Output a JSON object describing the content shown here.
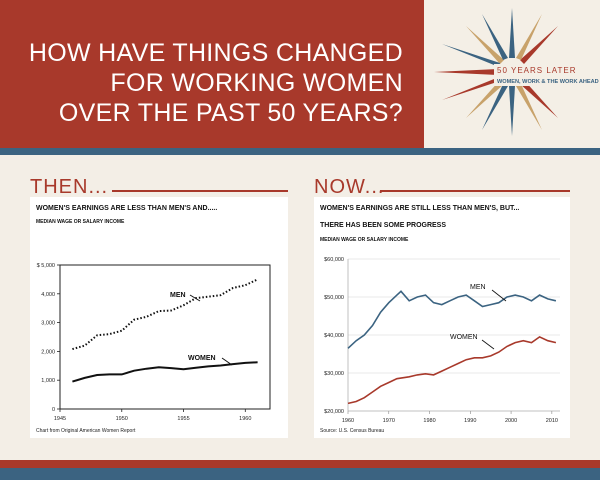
{
  "header": {
    "headline_lines": [
      "HOW HAVE THINGS CHANGED",
      "FOR WORKING WOMEN",
      "OVER THE PAST 50 YEARS?"
    ],
    "logo_line1": "50 YEARS LATER",
    "logo_line2": "WOMEN, WORK & THE WORK AHEAD"
  },
  "colors": {
    "brand_red": "#a8392b",
    "brand_blue": "#3b6381",
    "logo_gold": "#c8a26a",
    "background": "#f3eee6"
  },
  "then_label": "THEN...",
  "now_label": "NOW...",
  "chart_data": [
    {
      "type": "line",
      "title": "WOMEN'S EARNINGS ARE LESS THAN MEN'S AND.....",
      "subtitle": "MEDIAN WAGE OR SALARY INCOME",
      "source": "Chart from Original American Women Report",
      "xlim": [
        1945,
        1962
      ],
      "ylim": [
        0,
        5000
      ],
      "x_ticks": [
        1945,
        1950,
        1955,
        1960
      ],
      "x_tick_labels": [
        "1945",
        "1950",
        "1955",
        "1960"
      ],
      "y_ticks": [
        0,
        1000,
        2000,
        3000,
        4000,
        5000
      ],
      "y_tick_labels": [
        "0",
        "1,000",
        "2,000",
        "3,000",
        "4,000",
        "$ 5,000"
      ],
      "series": [
        {
          "name": "MEN",
          "style": "dotted",
          "x": [
            1946,
            1947,
            1948,
            1949,
            1950,
            1951,
            1952,
            1953,
            1954,
            1955,
            1956,
            1957,
            1958,
            1959,
            1960,
            1961
          ],
          "values": [
            2080,
            2200,
            2560,
            2600,
            2720,
            3100,
            3200,
            3400,
            3420,
            3600,
            3850,
            3900,
            3950,
            4200,
            4300,
            4500
          ]
        },
        {
          "name": "WOMEN",
          "style": "solid",
          "x": [
            1946,
            1947,
            1948,
            1949,
            1950,
            1951,
            1952,
            1953,
            1954,
            1955,
            1956,
            1957,
            1958,
            1959,
            1960,
            1961
          ],
          "values": [
            950,
            1080,
            1180,
            1200,
            1200,
            1330,
            1400,
            1450,
            1420,
            1380,
            1430,
            1480,
            1510,
            1560,
            1600,
            1620
          ]
        }
      ]
    },
    {
      "type": "line",
      "title": "WOMEN'S EARNINGS ARE STILL LESS THAN MEN'S, BUT...",
      "title_line2": "THERE HAS BEEN SOME PROGRESS",
      "subtitle": "MEDIAN WAGE OR SALARY INCOME",
      "source": "Source: U.S. Census Bureau",
      "xlim": [
        1960,
        2012
      ],
      "ylim": [
        20000,
        60000
      ],
      "x_ticks": [
        1960,
        1970,
        1980,
        1990,
        2000,
        2010
      ],
      "x_tick_labels": [
        "1960",
        "1970",
        "1980",
        "1990",
        "2000",
        "2010"
      ],
      "y_ticks": [
        20000,
        30000,
        40000,
        50000,
        60000
      ],
      "y_tick_labels": [
        "$20,000",
        "$30,000",
        "$40,000",
        "$50,000",
        "$60,000"
      ],
      "series": [
        {
          "name": "MEN",
          "color": "#3b6381",
          "x": [
            1960,
            1962,
            1964,
            1966,
            1968,
            1970,
            1972,
            1973,
            1975,
            1977,
            1979,
            1981,
            1983,
            1985,
            1987,
            1989,
            1991,
            1993,
            1995,
            1997,
            1999,
            2001,
            2003,
            2005,
            2007,
            2009,
            2011
          ],
          "values": [
            36500,
            38500,
            40000,
            42500,
            46000,
            48500,
            50500,
            51500,
            49000,
            50000,
            50500,
            48500,
            48000,
            49000,
            50000,
            50500,
            49000,
            47500,
            48000,
            48500,
            50000,
            50500,
            50000,
            49000,
            50500,
            49500,
            49000
          ]
        },
        {
          "name": "WOMEN",
          "color": "#a8392b",
          "x": [
            1960,
            1962,
            1964,
            1966,
            1968,
            1970,
            1972,
            1975,
            1977,
            1979,
            1981,
            1983,
            1985,
            1987,
            1989,
            1991,
            1993,
            1995,
            1997,
            1999,
            2001,
            2003,
            2005,
            2007,
            2009,
            2011
          ],
          "values": [
            22000,
            22500,
            23500,
            25000,
            26500,
            27500,
            28500,
            29000,
            29500,
            29800,
            29500,
            30500,
            31500,
            32500,
            33500,
            34000,
            34000,
            34500,
            35500,
            37000,
            38000,
            38500,
            38000,
            39500,
            38500,
            38000
          ]
        }
      ]
    }
  ]
}
